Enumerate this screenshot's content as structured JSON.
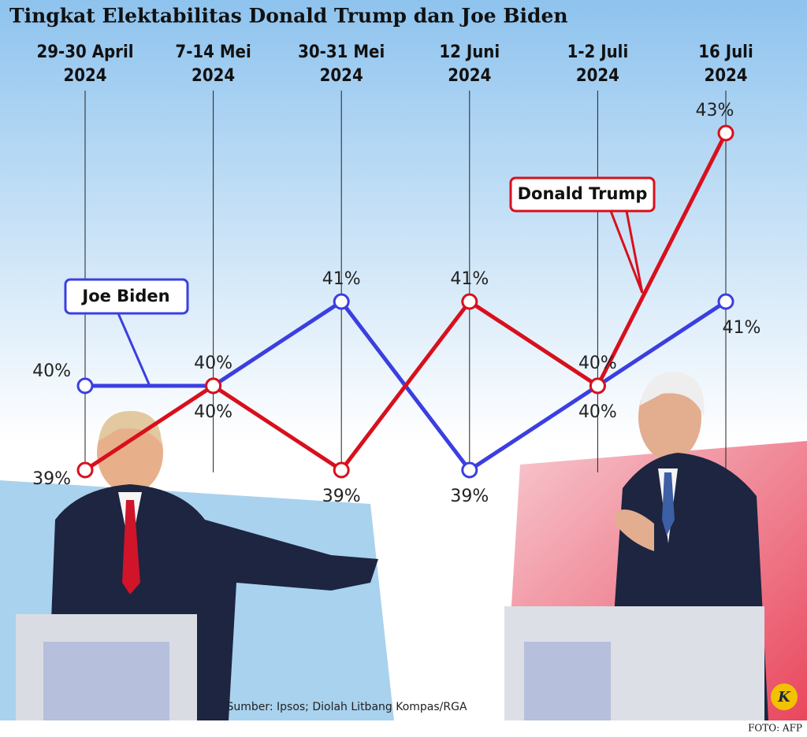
{
  "chart_data": {
    "type": "line",
    "title": "Tingkat Elektabilitas Donald Trump dan Joe Biden",
    "categories": [
      "29-30 April\n2024",
      "7-14 Mei\n2024",
      "30-31 Mei\n2024",
      "12 Juni\n2024",
      "1-2 Juli\n2024",
      "16 Juli\n2024"
    ],
    "series": [
      {
        "name": "Joe Biden",
        "color": "#3b3fe0",
        "values": [
          40,
          40,
          41,
          39,
          40,
          41
        ],
        "value_labels": [
          "40%",
          "40%",
          "41%",
          "39%",
          "40%",
          "41%"
        ]
      },
      {
        "name": "Donald Trump",
        "color": "#d8101c",
        "values": [
          39,
          40,
          39,
          41,
          40,
          43
        ],
        "value_labels": [
          "39%",
          "40%",
          "39%",
          "41%",
          "40%",
          "43%"
        ]
      }
    ],
    "ylim": [
      38,
      44
    ],
    "source": "Sumber: Ipsos; Diolah Litbang Kompas/RGA",
    "photo_credit": "FOTO: AFP",
    "logo": "K"
  }
}
